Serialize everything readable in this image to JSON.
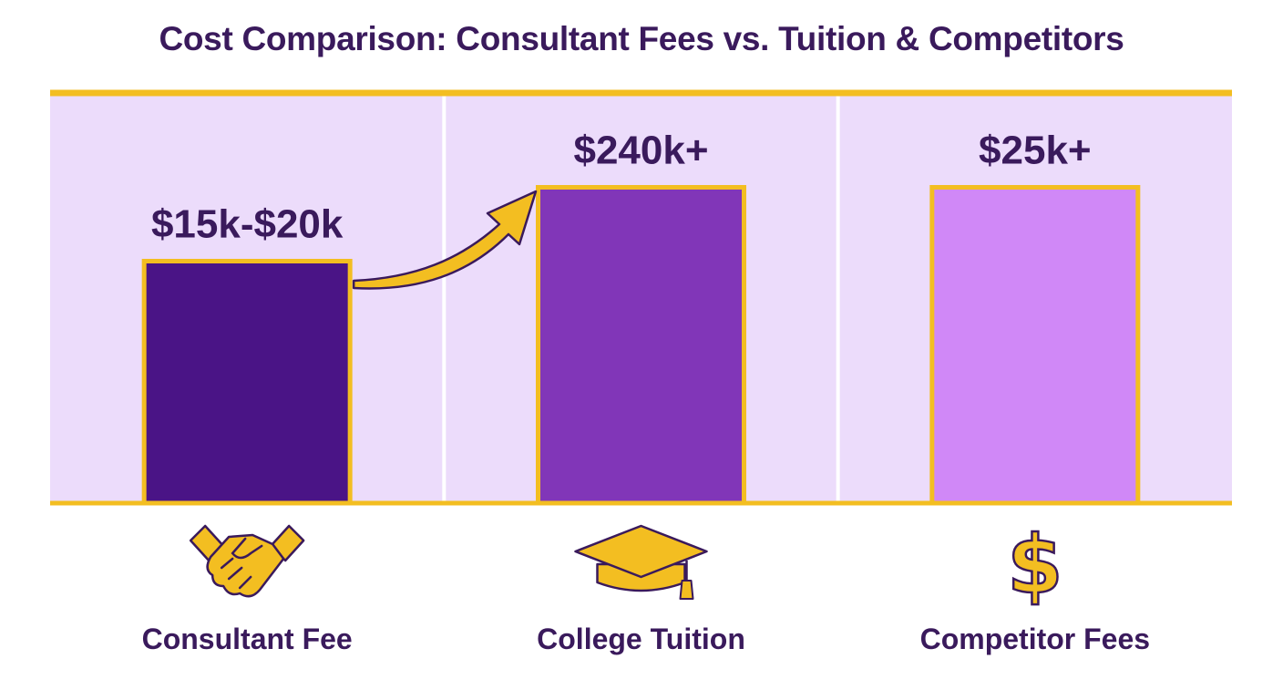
{
  "title": "Cost Comparison: Consultant Fees vs. Tuition & Competitors",
  "colors": {
    "panel": "#ecdcfb",
    "divider": "#ffffff",
    "accent": "#f3be21",
    "text": "#3a1a5c",
    "outline": "#3a1a5c"
  },
  "chart_data": {
    "type": "bar",
    "title": "Cost Comparison: Consultant Fees vs. Tuition & Competitors",
    "xlabel": "",
    "ylabel": "",
    "grid": false,
    "categories": [
      "Consultant Fee",
      "College Tuition",
      "Competitor Fees"
    ],
    "value_labels": [
      "$15k-$20k",
      "$240k+",
      "$25k+"
    ],
    "relative_heights": [
      0.59,
      0.77,
      0.77
    ],
    "bar_colors": [
      "#4a1486",
      "#8136b8",
      "#d088f7"
    ],
    "icons": [
      "handshake-icon",
      "graduation-cap-icon",
      "dollar-sign-icon"
    ],
    "annotations": [
      "upward arrow from Consultant Fee bar to College Tuition bar"
    ]
  }
}
